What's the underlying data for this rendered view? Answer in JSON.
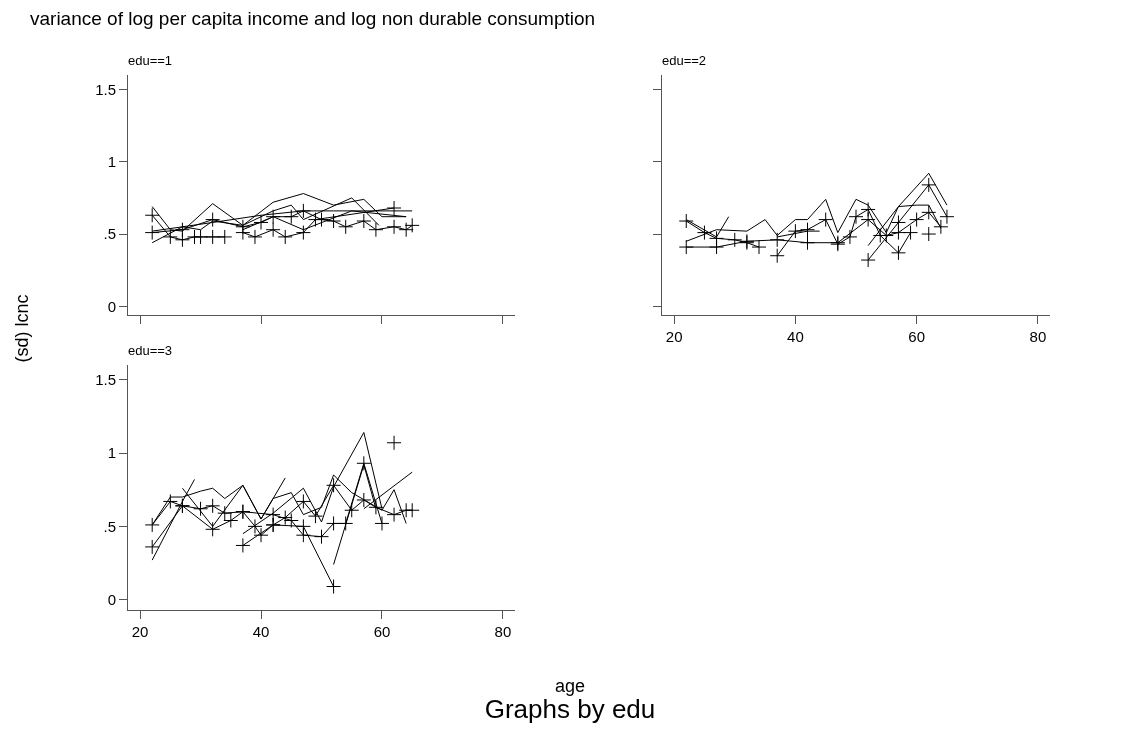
{
  "chart_data": [
    {
      "type": "line",
      "title": "edu==1",
      "ylabel": "(sd) lcnc",
      "annotations": [
        "variance of log per capita income and log non durable consumption",
        "Graphs by edu"
      ],
      "xlim": [
        18,
        82
      ],
      "ylim": [
        -0.06,
        1.6
      ],
      "xticks": [
        {
          "value": 20,
          "label": null
        },
        {
          "value": 40,
          "label": null
        },
        {
          "value": 60,
          "label": null
        },
        {
          "value": 80,
          "label": null
        }
      ],
      "yticks": [
        0,
        {
          "value": 0.5,
          "label": ".5"
        },
        1,
        1.5
      ],
      "tick_labels": "y",
      "series": [
        {
          "color": "#000000",
          "marker": "cross",
          "x": [
            22,
            25,
            27,
            29,
            30,
            32,
            34
          ],
          "values": [
            0.63,
            0.48,
            0.46,
            0.48,
            0.48,
            0.48,
            0.48
          ]
        },
        {
          "color": "#000000",
          "marker": "cross",
          "x": [
            22,
            27,
            32,
            37,
            40,
            42,
            45,
            47,
            50,
            52,
            54,
            57,
            59,
            62,
            64,
            65
          ],
          "values": [
            0.51,
            0.53,
            0.6,
            0.55,
            0.58,
            0.62,
            0.62,
            0.66,
            0.6,
            0.59,
            0.55,
            0.59,
            0.53,
            0.55,
            0.53,
            0.56
          ]
        },
        {
          "color": "#000000",
          "marker": "cross",
          "x": [
            37,
            39,
            42,
            44,
            47,
            49,
            62
          ],
          "values": [
            0.51,
            0.48,
            0.53,
            0.48,
            0.51,
            0.6,
            0.68
          ]
        },
        {
          "color": "#000000",
          "marker": "none",
          "x": [
            22,
            25,
            27,
            32,
            37,
            42,
            47,
            52,
            57,
            60,
            64
          ],
          "values": [
            0.69,
            0.53,
            0.52,
            0.71,
            0.56,
            0.72,
            0.78,
            0.7,
            0.74,
            0.62,
            0.62
          ]
        },
        {
          "color": "#000000",
          "marker": "none",
          "x": [
            22,
            27,
            30,
            32,
            37,
            42,
            45,
            47,
            55,
            59.5
          ],
          "values": [
            0.44,
            0.55,
            0.53,
            0.59,
            0.56,
            0.66,
            0.7,
            0.6,
            0.75,
            0.56
          ]
        },
        {
          "color": "#000000",
          "marker": "none",
          "x": [
            22,
            27,
            32,
            40,
            47,
            52,
            65
          ],
          "values": [
            0.52,
            0.55,
            0.58,
            0.63,
            0.66,
            0.66,
            0.66
          ]
        },
        {
          "color": "#000000",
          "marker": "none",
          "x": [
            37,
            42,
            47,
            55,
            64
          ],
          "values": [
            0.53,
            0.62,
            0.53,
            0.66,
            0.62
          ]
        }
      ]
    },
    {
      "type": "line",
      "title": "edu==2",
      "xlim": [
        18,
        82
      ],
      "ylim": [
        -0.06,
        1.6
      ],
      "xticks": [
        20,
        40,
        60,
        80
      ],
      "yticks": [
        {
          "value": 0,
          "label": null
        },
        {
          "value": 0.5,
          "label": null
        },
        {
          "value": 1,
          "label": null
        },
        {
          "value": 1.5,
          "label": null
        }
      ],
      "tick_labels": "x",
      "series": [
        {
          "color": "#000000",
          "marker": "cross",
          "x": [
            22,
            25,
            27,
            30,
            32,
            34
          ],
          "values": [
            0.59,
            0.51,
            0.47,
            0.46,
            0.44,
            0.41
          ]
        },
        {
          "color": "#000000",
          "marker": "cross",
          "x": [
            22,
            27,
            32,
            37,
            42,
            47,
            52,
            55,
            57,
            60,
            62,
            64
          ],
          "values": [
            0.41,
            0.41,
            0.45,
            0.46,
            0.44,
            0.44,
            0.6,
            0.49,
            0.51,
            0.6,
            0.65,
            0.55
          ]
        },
        {
          "color": "#000000",
          "marker": "cross",
          "x": [
            37,
            40,
            42,
            45,
            47,
            49,
            50,
            52,
            54,
            57,
            59
          ],
          "values": [
            0.35,
            0.52,
            0.53,
            0.6,
            0.43,
            0.48,
            0.62,
            0.67,
            0.49,
            0.37,
            0.51
          ]
        },
        {
          "color": "#000000",
          "marker": "cross",
          "x": [
            52,
            57,
            62,
            65
          ],
          "values": [
            0.32,
            0.58,
            0.84,
            0.62
          ]
        },
        {
          "color": "#000000",
          "marker": "cross",
          "type": "scatter",
          "x": [
            62
          ],
          "values": [
            0.5
          ]
        },
        {
          "color": "#000000",
          "marker": "none",
          "x": [
            22,
            27,
            32,
            35,
            37,
            40,
            42,
            45,
            47,
            50,
            52,
            55,
            57,
            60,
            62,
            64
          ],
          "values": [
            0.45,
            0.53,
            0.52,
            0.6,
            0.49,
            0.6,
            0.6,
            0.74,
            0.51,
            0.74,
            0.7,
            0.51,
            0.69,
            0.7,
            0.7,
            0.54
          ]
        },
        {
          "color": "#000000",
          "marker": "none",
          "x": [
            22,
            27,
            29
          ],
          "values": [
            0.6,
            0.48,
            0.62
          ]
        },
        {
          "color": "#000000",
          "marker": "none",
          "x": [
            52,
            57,
            62,
            65
          ],
          "values": [
            0.42,
            0.69,
            0.92,
            0.7
          ]
        },
        {
          "color": "#000000",
          "marker": "none",
          "x": [
            37,
            42,
            44
          ],
          "values": [
            0.48,
            0.52,
            0.52
          ]
        }
      ]
    },
    {
      "type": "line",
      "title": "edu==3",
      "xlabel": "age",
      "xlim": [
        18,
        82
      ],
      "ylim": [
        -0.07,
        1.6
      ],
      "xticks": [
        20,
        40,
        60,
        80
      ],
      "yticks": [
        0,
        {
          "value": 0.5,
          "label": ".5"
        },
        1,
        1.5
      ],
      "series": [
        {
          "color": "#000000",
          "marker": "cross",
          "x": [
            22,
            25,
            27,
            30,
            32,
            34,
            37,
            39,
            40,
            42,
            44,
            47,
            49,
            52,
            55,
            57,
            59,
            62,
            64,
            65
          ],
          "values": [
            0.51,
            0.67,
            0.64,
            0.62,
            0.64,
            0.59,
            0.6,
            0.5,
            0.44,
            0.51,
            0.56,
            0.67,
            0.57,
            0.78,
            0.61,
            0.68,
            0.63,
            0.58,
            0.61,
            0.61
          ]
        },
        {
          "color": "#000000",
          "marker": "cross",
          "x": [
            22,
            27,
            32,
            35,
            37,
            42,
            45,
            47,
            50,
            52,
            54,
            57,
            60
          ],
          "values": [
            0.36,
            0.64,
            0.48,
            0.54,
            0.6,
            0.58,
            0.54,
            0.44,
            0.43,
            0.52,
            0.52,
            0.93,
            0.52
          ]
        },
        {
          "color": "#000000",
          "marker": "cross",
          "x": [
            37,
            42,
            47,
            52
          ],
          "values": [
            0.37,
            0.51,
            0.5,
            0.09
          ]
        },
        {
          "color": "#000000",
          "marker": "cross",
          "type": "scatter",
          "x": [
            62
          ],
          "values": [
            1.07
          ]
        },
        {
          "color": "#000000",
          "marker": "none",
          "x": [
            22,
            27,
            29
          ],
          "values": [
            0.27,
            0.67,
            0.82
          ]
        },
        {
          "color": "#000000",
          "marker": "none",
          "x": [
            22,
            25,
            27,
            30,
            32,
            34,
            37,
            40,
            42,
            45,
            47,
            50,
            52,
            55,
            60,
            62,
            64
          ],
          "values": [
            0.51,
            0.7,
            0.7,
            0.74,
            0.76,
            0.69,
            0.78,
            0.55,
            0.69,
            0.73,
            0.58,
            0.63,
            0.85,
            0.73,
            0.61,
            0.75,
            0.52
          ]
        },
        {
          "color": "#000000",
          "marker": "none",
          "x": [
            27,
            32,
            37,
            40,
            44
          ],
          "values": [
            0.76,
            0.5,
            0.78,
            0.55,
            0.83
          ]
        },
        {
          "color": "#000000",
          "marker": "none",
          "x": [
            37,
            42,
            47,
            50,
            52,
            57,
            60
          ],
          "values": [
            0.45,
            0.59,
            0.76,
            0.53,
            0.77,
            1.14,
            0.62
          ]
        },
        {
          "color": "#000000",
          "marker": "none",
          "x": [
            52,
            57,
            59
          ],
          "values": [
            0.24,
            0.92,
            0.62
          ]
        },
        {
          "color": "#000000",
          "marker": "none",
          "x": [
            57,
            65
          ],
          "values": [
            0.62,
            0.87
          ]
        }
      ]
    }
  ]
}
